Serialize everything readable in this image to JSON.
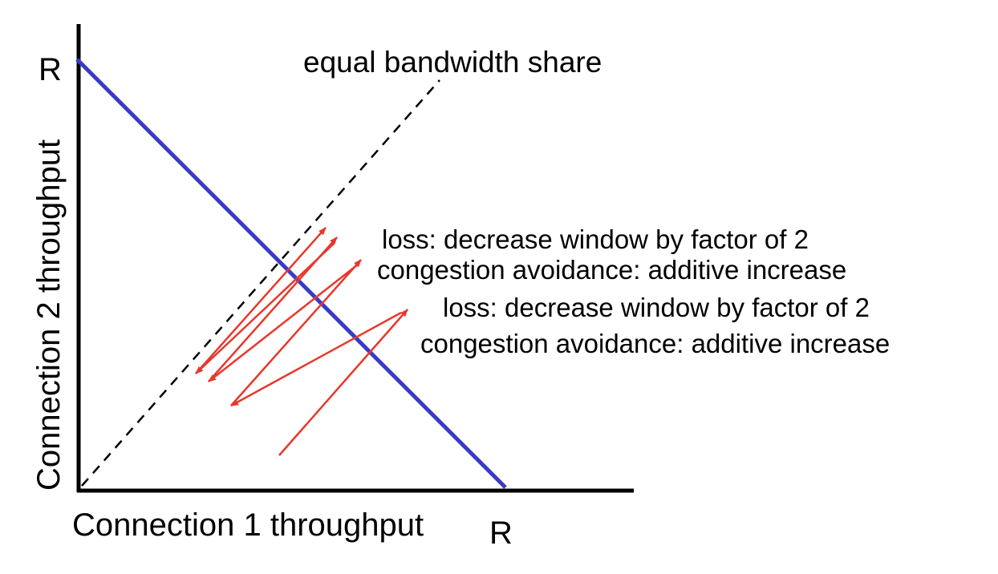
{
  "diagram": {
    "y_axis_label": "Connection 2 throughput",
    "x_axis_label": "Connection 1 throughput",
    "y_max_label": "R",
    "x_max_label": "R",
    "equal_share_label": "equal bandwidth share",
    "annotations": [
      "loss: decrease window by factor of 2",
      "congestion avoidance: additive increase",
      "loss: decrease window by factor of 2",
      "congestion avoidance: additive increase"
    ]
  },
  "colors": {
    "axis": "#000000",
    "capacity_line": "#3a3ac8",
    "equal_share_line": "#000000",
    "trajectory": "#e8382c",
    "text": "#000000"
  }
}
